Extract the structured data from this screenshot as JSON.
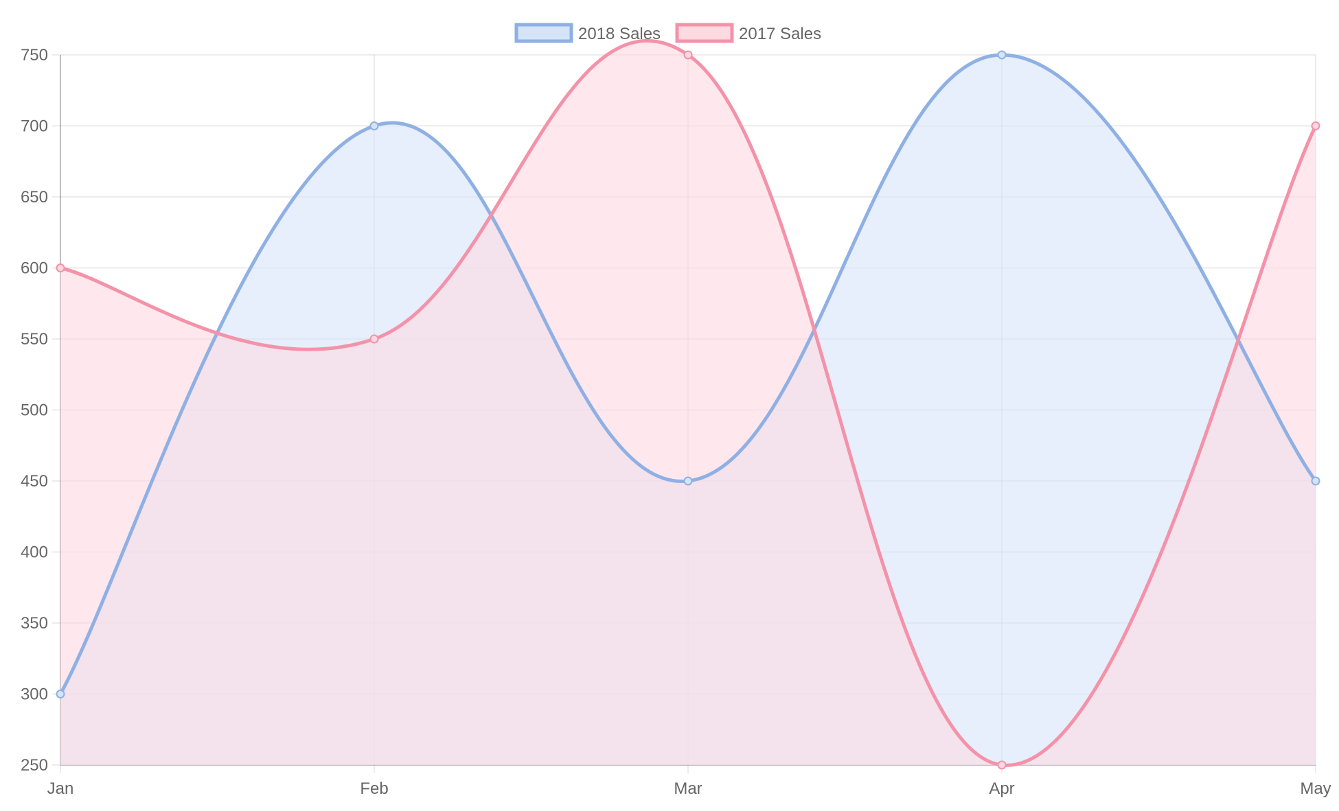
{
  "chart_data": {
    "type": "area",
    "title": "",
    "xlabel": "",
    "ylabel": "",
    "categories": [
      "Jan",
      "Feb",
      "Mar",
      "Apr",
      "May"
    ],
    "ylim": [
      250,
      750
    ],
    "y_ticks": [
      750,
      700,
      650,
      600,
      550,
      500,
      450,
      400,
      350,
      300,
      250
    ],
    "grid": true,
    "legend_position": "top-center",
    "smooth": true,
    "series": [
      {
        "name": "2018 Sales",
        "values": [
          300,
          700,
          450,
          750,
          450
        ],
        "line_color": "#8FB0E4",
        "fill_color": "#D6E4F8"
      },
      {
        "name": "2017 Sales",
        "values": [
          600,
          550,
          750,
          250,
          700
        ],
        "line_color": "#F492A9",
        "fill_color": "#FDD9E2"
      }
    ]
  }
}
